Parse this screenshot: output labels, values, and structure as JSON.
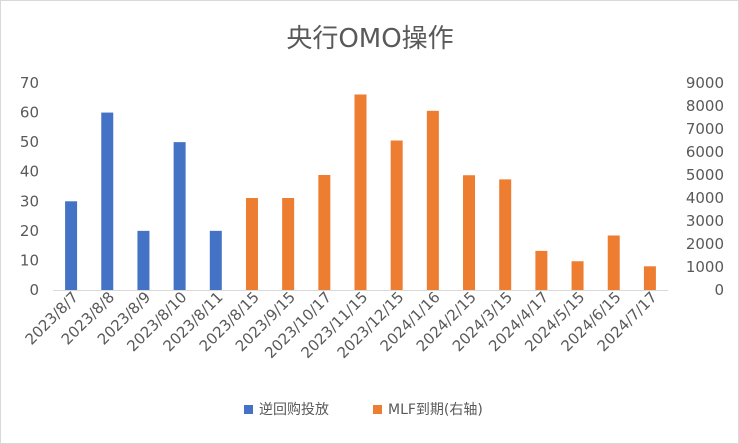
{
  "chart_data": {
    "type": "bar",
    "title": "央行OMO操作",
    "categories": [
      "2023/8/7",
      "2023/8/8",
      "2023/8/9",
      "2023/8/10",
      "2023/8/11",
      "2023/8/15",
      "2023/9/15",
      "2023/10/17",
      "2023/11/15",
      "2023/12/15",
      "2024/1/16",
      "2024/2/15",
      "2024/3/15",
      "2024/4/17",
      "2024/5/15",
      "2024/6/15",
      "2024/7/17"
    ],
    "series": [
      {
        "name": "逆回购投放",
        "axis": "left",
        "color": "#4472C4",
        "values": [
          30,
          60,
          20,
          50,
          20,
          null,
          null,
          null,
          null,
          null,
          null,
          null,
          null,
          null,
          null,
          null,
          null
        ]
      },
      {
        "name": "MLF到期(右轴)",
        "axis": "right",
        "color": "#ED7D31",
        "values": [
          null,
          null,
          null,
          null,
          null,
          4000,
          4000,
          5000,
          8500,
          6500,
          7790,
          4990,
          4810,
          1700,
          1250,
          2370,
          1030
        ]
      }
    ],
    "y_left": {
      "min": 0,
      "max": 70,
      "ticks": [
        "0",
        "10",
        "20",
        "30",
        "40",
        "50",
        "60",
        "70"
      ]
    },
    "y_right": {
      "min": 0,
      "max": 9000,
      "ticks": [
        "0",
        "1000",
        "2000",
        "3000",
        "4000",
        "5000",
        "6000",
        "7000",
        "8000",
        "9000"
      ]
    },
    "grid": false,
    "legend_position": "bottom"
  }
}
